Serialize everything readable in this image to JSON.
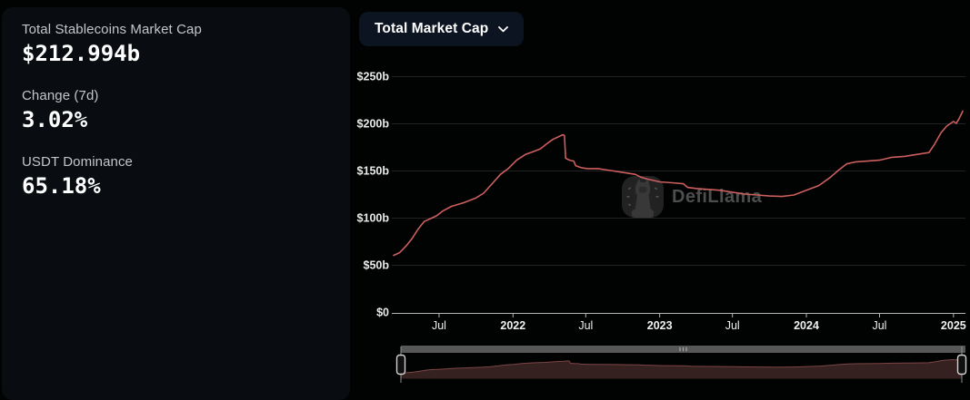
{
  "theme": {
    "card_bg": "#090d11",
    "button_bg": "#0d1421",
    "page_bg": "#010202",
    "text_primary": "#ffffff",
    "text_secondary": "#c3c7cb"
  },
  "stats_panel": {
    "items": [
      {
        "label": "Total Stablecoins Market Cap",
        "value": "$212.994b"
      },
      {
        "label": "Change (7d)",
        "value": "3.02%"
      },
      {
        "label": "USDT Dominance",
        "value": "65.18%"
      }
    ]
  },
  "toolbar": {
    "chart_type_button": "Total Market Cap",
    "chevron_icon": "chevron-down"
  },
  "watermark": {
    "text": "DefiLlama",
    "icon": "defillama-llama-logo"
  },
  "chart_data": {
    "type": "line",
    "title": "Total Stablecoins Market Cap over time",
    "ylabel": "",
    "xlabel": "",
    "ylim": [
      0,
      250
    ],
    "x_domain": [
      "2021-03-10",
      "2025-01-24"
    ],
    "grid": true,
    "legend": "none",
    "y_ticks": [
      {
        "value": 0,
        "label": "$0"
      },
      {
        "value": 50,
        "label": "$50b"
      },
      {
        "value": 100,
        "label": "$100b"
      },
      {
        "value": 150,
        "label": "$150b"
      },
      {
        "value": 200,
        "label": "$200b"
      },
      {
        "value": 250,
        "label": "$250b"
      }
    ],
    "x_ticks": [
      {
        "date": "2021-07-01",
        "label": "Jul",
        "bold": false
      },
      {
        "date": "2022-01-01",
        "label": "2022",
        "bold": true
      },
      {
        "date": "2022-07-01",
        "label": "Jul",
        "bold": false
      },
      {
        "date": "2023-01-01",
        "label": "2023",
        "bold": true
      },
      {
        "date": "2023-07-01",
        "label": "Jul",
        "bold": false
      },
      {
        "date": "2024-01-01",
        "label": "2024",
        "bold": true
      },
      {
        "date": "2024-07-01",
        "label": "Jul",
        "bold": false
      },
      {
        "date": "2025-01-01",
        "label": "2025",
        "bold": true
      }
    ],
    "series": [
      {
        "name": "Total Market Cap ($b)",
        "points": [
          [
            "2021-03-10",
            60
          ],
          [
            "2021-03-25",
            63
          ],
          [
            "2021-04-10",
            70
          ],
          [
            "2021-04-25",
            78
          ],
          [
            "2021-05-10",
            88
          ],
          [
            "2021-05-25",
            96
          ],
          [
            "2021-06-10",
            99
          ],
          [
            "2021-06-25",
            102
          ],
          [
            "2021-07-10",
            107
          ],
          [
            "2021-08-01",
            112
          ],
          [
            "2021-09-01",
            116
          ],
          [
            "2021-10-01",
            121
          ],
          [
            "2021-10-20",
            126
          ],
          [
            "2021-11-10",
            136
          ],
          [
            "2021-12-01",
            146
          ],
          [
            "2021-12-20",
            152
          ],
          [
            "2022-01-10",
            161
          ],
          [
            "2022-02-01",
            167
          ],
          [
            "2022-02-20",
            170
          ],
          [
            "2022-03-10",
            173
          ],
          [
            "2022-03-25",
            178
          ],
          [
            "2022-04-10",
            183
          ],
          [
            "2022-04-25",
            186
          ],
          [
            "2022-05-05",
            188
          ],
          [
            "2022-05-09",
            187
          ],
          [
            "2022-05-12",
            163
          ],
          [
            "2022-05-22",
            161
          ],
          [
            "2022-06-01",
            160
          ],
          [
            "2022-06-06",
            155
          ],
          [
            "2022-06-20",
            153
          ],
          [
            "2022-07-05",
            152
          ],
          [
            "2022-08-01",
            152
          ],
          [
            "2022-09-01",
            150
          ],
          [
            "2022-10-01",
            148
          ],
          [
            "2022-11-01",
            146
          ],
          [
            "2022-11-15",
            143
          ],
          [
            "2022-12-01",
            141
          ],
          [
            "2023-01-01",
            138
          ],
          [
            "2023-02-01",
            137
          ],
          [
            "2023-03-01",
            136
          ],
          [
            "2023-03-12",
            132
          ],
          [
            "2023-04-01",
            131
          ],
          [
            "2023-05-01",
            130
          ],
          [
            "2023-06-01",
            129
          ],
          [
            "2023-07-01",
            127
          ],
          [
            "2023-08-01",
            125
          ],
          [
            "2023-09-01",
            124
          ],
          [
            "2023-10-01",
            123
          ],
          [
            "2023-11-01",
            122.5
          ],
          [
            "2023-12-01",
            124
          ],
          [
            "2024-01-01",
            129
          ],
          [
            "2024-02-01",
            134
          ],
          [
            "2024-03-01",
            143
          ],
          [
            "2024-03-20",
            150
          ],
          [
            "2024-04-10",
            157
          ],
          [
            "2024-05-01",
            159
          ],
          [
            "2024-06-01",
            160
          ],
          [
            "2024-07-01",
            161
          ],
          [
            "2024-08-01",
            164
          ],
          [
            "2024-09-01",
            165
          ],
          [
            "2024-10-01",
            167
          ],
          [
            "2024-11-01",
            169
          ],
          [
            "2024-11-15",
            178
          ],
          [
            "2024-12-01",
            190
          ],
          [
            "2024-12-15",
            197
          ],
          [
            "2025-01-01",
            202
          ],
          [
            "2025-01-08",
            200
          ],
          [
            "2025-01-15",
            205
          ],
          [
            "2025-01-24",
            212.994
          ]
        ]
      }
    ],
    "brush": {
      "present": true,
      "range": "full"
    },
    "colors": {
      "line": "#cd5f5f",
      "brush_fill": "#35211f",
      "brush_stroke": "#7c4545",
      "grid": "rgba(255,255,255,0.13)",
      "axis": "#b5b5b5",
      "tick_label": "#f0f0f0",
      "scrollbar": "#575757",
      "scrollbar_grip": "#a8a8a8",
      "handle_fill": "#101010",
      "handle_stroke": "#d2d2d2"
    }
  }
}
